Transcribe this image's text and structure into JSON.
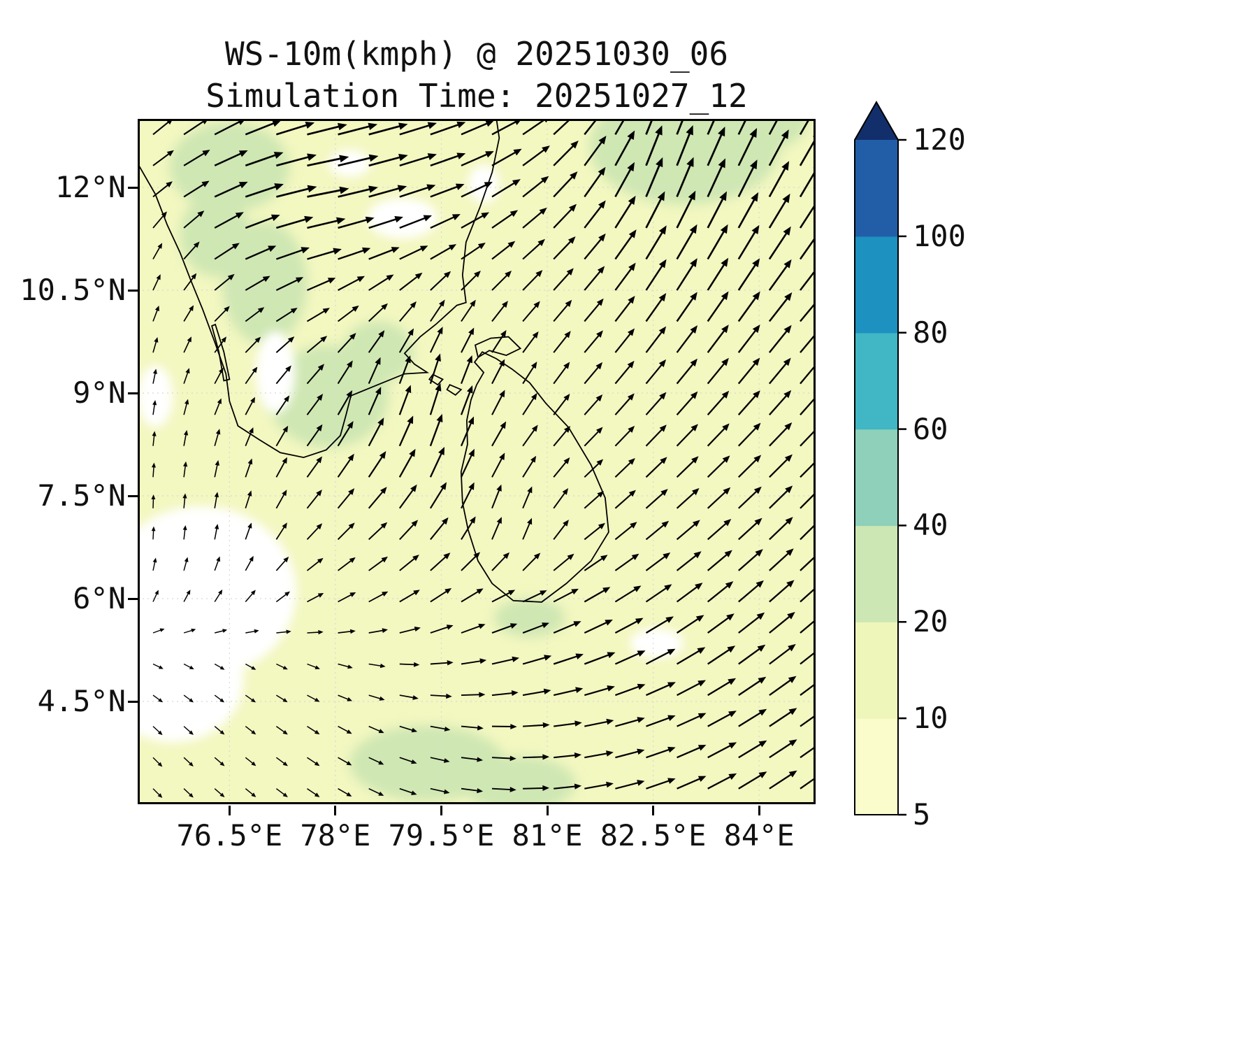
{
  "chart_data": {
    "type": "heatmap",
    "subtype": "wind-speed-filled-contour-with-quiver",
    "title": "WS-10m(kmph) @ 20251030_06",
    "subtitle": "Simulation Time: 20251027_12",
    "extent": {
      "lon_min": 75.2,
      "lon_max": 84.8,
      "lat_min": 3.0,
      "lat_max": 13.0
    },
    "x_ticks": [
      {
        "label": "76.5°E",
        "lon": 76.5
      },
      {
        "label": "78°E",
        "lon": 78.0
      },
      {
        "label": "79.5°E",
        "lon": 79.5
      },
      {
        "label": "81°E",
        "lon": 81.0
      },
      {
        "label": "82.5°E",
        "lon": 82.5
      },
      {
        "label": "84°E",
        "lon": 84.0
      }
    ],
    "y_ticks": [
      {
        "label": "12°N",
        "lat": 12.0
      },
      {
        "label": "10.5°N",
        "lat": 10.5
      },
      {
        "label": "9°N",
        "lat": 9.0
      },
      {
        "label": "7.5°N",
        "lat": 7.5
      },
      {
        "label": "6°N",
        "lat": 6.0
      },
      {
        "label": "4.5°N",
        "lat": 4.5
      }
    ],
    "grid_color": "#d8d8d8",
    "background_color": "#f3f7c0",
    "patch_color": "#cfe7b3",
    "under_color": "#ffffff",
    "colorbar": {
      "levels": [
        5,
        10,
        20,
        40,
        60,
        80,
        100,
        120
      ],
      "colors": [
        "#fbfccb",
        "#eff6ba",
        "#cde7b4",
        "#8ed0ba",
        "#41b6c4",
        "#1d91c0",
        "#225ea8"
      ],
      "extend": "max",
      "extend_color": "#122f6b",
      "units": "kmph"
    },
    "green_patches": [
      [
        82.95,
        12.6,
        1.35,
        0.85
      ],
      [
        83.9,
        13.0,
        0.8,
        0.5
      ],
      [
        76.5,
        12.3,
        0.85,
        0.65
      ],
      [
        77.0,
        10.6,
        0.6,
        0.9
      ],
      [
        76.3,
        11.3,
        0.5,
        0.6
      ],
      [
        77.9,
        8.95,
        0.85,
        0.75
      ],
      [
        78.6,
        9.6,
        0.5,
        0.45
      ],
      [
        80.75,
        5.72,
        0.5,
        0.28
      ],
      [
        79.3,
        3.6,
        1.1,
        0.55
      ],
      [
        80.6,
        3.3,
        0.8,
        0.4
      ]
    ],
    "white_patches": [
      [
        76.1,
        6.1,
        1.35,
        1.25
      ],
      [
        75.7,
        4.8,
        1.0,
        0.9
      ],
      [
        77.15,
        9.3,
        0.28,
        0.6
      ],
      [
        78.95,
        11.55,
        0.5,
        0.3
      ],
      [
        80.1,
        12.05,
        0.22,
        0.28
      ],
      [
        82.55,
        5.35,
        0.38,
        0.22
      ],
      [
        75.45,
        8.95,
        0.25,
        0.45
      ],
      [
        78.2,
        12.35,
        0.3,
        0.2
      ]
    ],
    "wind_grid": {
      "display_grid": 22,
      "lons": [
        75.5,
        76.5,
        77.5,
        78.5,
        79.5,
        80.5,
        81.5,
        82.5,
        83.5,
        84.5
      ],
      "lats": [
        13,
        12,
        11,
        10,
        9,
        8,
        7,
        6,
        5,
        4
      ],
      "angles_deg": [
        [
          40,
          25,
          15,
          15,
          20,
          30,
          50,
          70,
          65,
          60
        ],
        [
          35,
          20,
          10,
          15,
          20,
          35,
          55,
          70,
          65,
          60
        ],
        [
          60,
          25,
          15,
          20,
          30,
          40,
          50,
          60,
          60,
          55
        ],
        [
          70,
          40,
          30,
          45,
          60,
          50,
          50,
          55,
          55,
          50
        ],
        [
          80,
          60,
          50,
          70,
          75,
          60,
          50,
          50,
          50,
          50
        ],
        [
          85,
          75,
          55,
          60,
          70,
          55,
          45,
          45,
          45,
          45
        ],
        [
          90,
          80,
          50,
          45,
          55,
          80,
          40,
          40,
          42,
          45
        ],
        [
          70,
          60,
          30,
          30,
          35,
          25,
          30,
          35,
          40,
          42
        ],
        [
          -30,
          -35,
          -25,
          -10,
          5,
          15,
          20,
          28,
          35,
          38
        ],
        [
          -45,
          -40,
          -35,
          -25,
          -10,
          0,
          10,
          20,
          30,
          35
        ]
      ],
      "speeds": [
        [
          0.5,
          0.8,
          0.9,
          0.9,
          0.8,
          0.7,
          0.8,
          1.0,
          0.95,
          0.9
        ],
        [
          0.5,
          0.9,
          1.0,
          0.9,
          0.8,
          0.7,
          0.8,
          1.0,
          0.95,
          0.9
        ],
        [
          0.3,
          0.7,
          0.8,
          0.7,
          0.6,
          0.6,
          0.7,
          0.9,
          0.9,
          0.85
        ],
        [
          0.25,
          0.4,
          0.5,
          0.5,
          0.5,
          0.5,
          0.6,
          0.75,
          0.8,
          0.8
        ],
        [
          0.2,
          0.3,
          0.5,
          0.6,
          0.7,
          0.5,
          0.55,
          0.65,
          0.7,
          0.7
        ],
        [
          0.2,
          0.3,
          0.5,
          0.7,
          0.75,
          0.5,
          0.5,
          0.6,
          0.65,
          0.7
        ],
        [
          0.15,
          0.25,
          0.4,
          0.5,
          0.6,
          0.4,
          0.5,
          0.6,
          0.65,
          0.7
        ],
        [
          0.15,
          0.2,
          0.3,
          0.4,
          0.5,
          0.5,
          0.6,
          0.65,
          0.7,
          0.7
        ],
        [
          0.1,
          0.1,
          0.15,
          0.25,
          0.45,
          0.6,
          0.7,
          0.7,
          0.7,
          0.7
        ],
        [
          0.15,
          0.15,
          0.2,
          0.25,
          0.35,
          0.5,
          0.6,
          0.65,
          0.7,
          0.7
        ]
      ]
    },
    "coastlines": {
      "india": [
        [
          75.2,
          12.35
        ],
        [
          75.45,
          11.9
        ],
        [
          75.62,
          11.45
        ],
        [
          75.8,
          11.05
        ],
        [
          75.95,
          10.65
        ],
        [
          76.12,
          10.22
        ],
        [
          76.3,
          9.72
        ],
        [
          76.45,
          9.28
        ],
        [
          76.5,
          8.88
        ],
        [
          76.62,
          8.52
        ],
        [
          76.92,
          8.32
        ],
        [
          77.22,
          8.13
        ],
        [
          77.55,
          8.06
        ],
        [
          77.87,
          8.17
        ],
        [
          78.07,
          8.38
        ],
        [
          78.15,
          8.68
        ],
        [
          78.22,
          8.96
        ],
        [
          78.6,
          9.12
        ],
        [
          78.98,
          9.28
        ],
        [
          79.3,
          9.3
        ],
        [
          79.12,
          9.42
        ],
        [
          78.98,
          9.58
        ],
        [
          79.2,
          9.82
        ],
        [
          79.42,
          10.0
        ],
        [
          79.72,
          10.28
        ],
        [
          79.85,
          10.32
        ],
        [
          79.8,
          10.72
        ],
        [
          79.85,
          11.2
        ],
        [
          80.05,
          11.72
        ],
        [
          80.22,
          12.22
        ],
        [
          80.32,
          12.72
        ],
        [
          80.28,
          13.0
        ]
      ],
      "sri_lanka": [
        [
          79.87,
          8.25
        ],
        [
          79.78,
          7.85
        ],
        [
          79.8,
          7.4
        ],
        [
          79.88,
          7.0
        ],
        [
          80.02,
          6.55
        ],
        [
          80.22,
          6.22
        ],
        [
          80.52,
          5.97
        ],
        [
          80.92,
          5.95
        ],
        [
          81.27,
          6.22
        ],
        [
          81.62,
          6.55
        ],
        [
          81.87,
          6.97
        ],
        [
          81.82,
          7.47
        ],
        [
          81.62,
          7.95
        ],
        [
          81.3,
          8.5
        ],
        [
          80.98,
          8.85
        ],
        [
          80.75,
          9.15
        ],
        [
          80.5,
          9.35
        ],
        [
          80.28,
          9.5
        ],
        [
          80.08,
          9.6
        ],
        [
          79.97,
          9.45
        ],
        [
          80.1,
          9.3
        ],
        [
          80.0,
          9.12
        ],
        [
          79.92,
          8.9
        ],
        [
          79.86,
          8.6
        ]
      ],
      "jaffna": [
        [
          79.98,
          9.7
        ],
        [
          80.2,
          9.8
        ],
        [
          80.45,
          9.82
        ],
        [
          80.62,
          9.65
        ],
        [
          80.42,
          9.55
        ],
        [
          80.18,
          9.62
        ],
        [
          80.02,
          9.52
        ]
      ],
      "islets": [
        [
          [
            79.38,
            9.27
          ],
          [
            79.52,
            9.2
          ],
          [
            79.45,
            9.12
          ],
          [
            79.33,
            9.2
          ]
        ],
        [
          [
            79.62,
            9.12
          ],
          [
            79.78,
            9.05
          ],
          [
            79.7,
            8.97
          ],
          [
            79.58,
            9.05
          ]
        ]
      ],
      "kerala_lagoon": [
        [
          76.3,
          10.0
        ],
        [
          76.42,
          9.6
        ],
        [
          76.5,
          9.2
        ],
        [
          76.42,
          9.18
        ],
        [
          76.35,
          9.6
        ],
        [
          76.25,
          9.98
        ]
      ]
    }
  }
}
